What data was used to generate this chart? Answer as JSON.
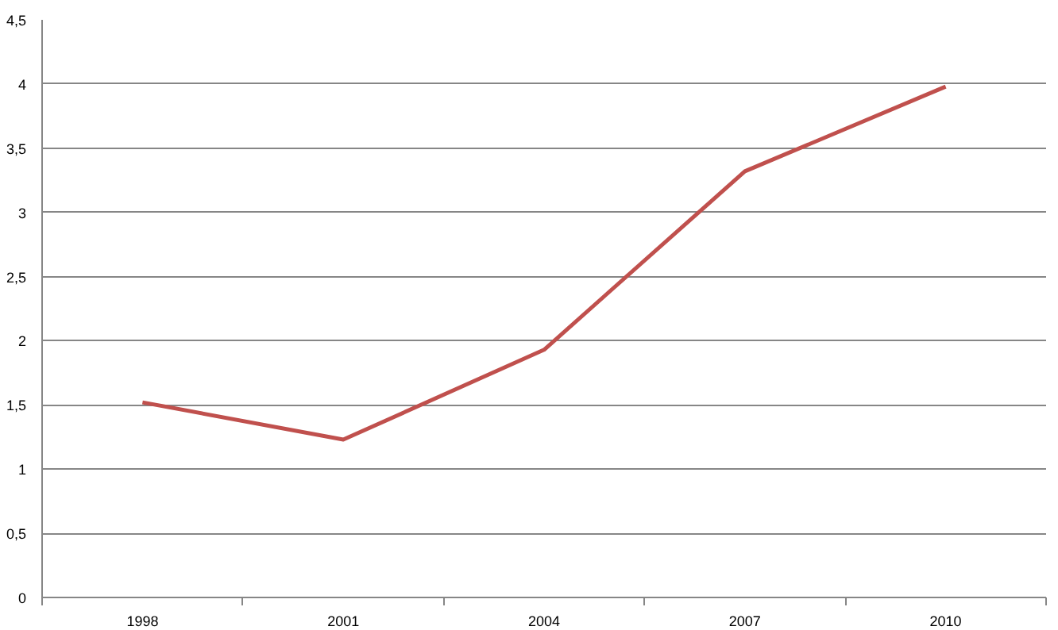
{
  "chart_data": {
    "type": "line",
    "categories": [
      "1998",
      "2001",
      "2004",
      "2007",
      "2010"
    ],
    "series": [
      {
        "color": "#c0504d",
        "values": [
          1.52,
          1.23,
          1.93,
          3.32,
          3.98
        ]
      }
    ],
    "ylim": [
      0,
      4.5
    ],
    "yticks": [
      0,
      {
        "value": 0.5,
        "label": "0,5"
      },
      1,
      {
        "value": 1.5,
        "label": "1,5"
      },
      2,
      {
        "value": 2.5,
        "label": "2,5"
      },
      3,
      {
        "value": 3.5,
        "label": "3,5"
      },
      4,
      {
        "value": 4.5,
        "label": "4,5"
      }
    ],
    "grid": "y",
    "marker": "none",
    "line_style": "solid"
  }
}
